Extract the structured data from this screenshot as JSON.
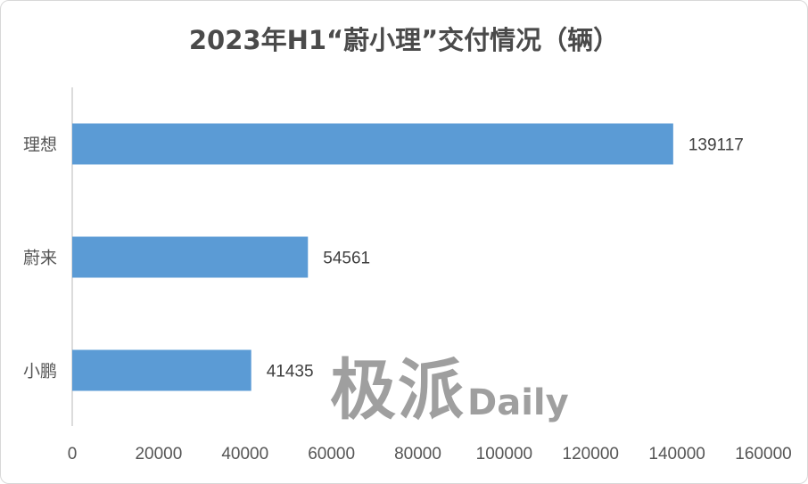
{
  "chart_data": {
    "type": "bar",
    "orientation": "horizontal",
    "title": "2023年H1“蔚小理”交付情况（辆）",
    "categories": [
      "理想",
      "蔚来",
      "小鹏"
    ],
    "values": [
      139117,
      54561,
      41435
    ],
    "data_labels": [
      "139117",
      "54561",
      "41435"
    ],
    "xlim": [
      0,
      160000
    ],
    "x_ticks": [
      "0",
      "20000",
      "40000",
      "60000",
      "80000",
      "100000",
      "120000",
      "140000",
      "160000"
    ],
    "bar_color": "#5b9bd5",
    "grid": false,
    "legend": "none"
  },
  "watermark": {
    "cn": "极派",
    "en": "Daily"
  }
}
